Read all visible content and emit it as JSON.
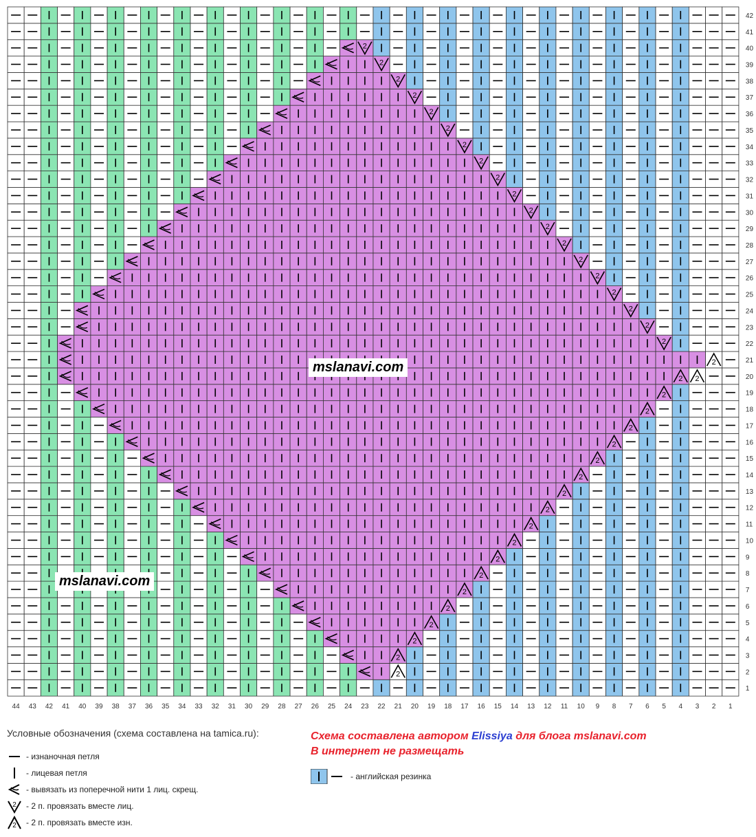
{
  "chart": {
    "cols": 44,
    "rows": 42,
    "colors": {
      "green": "#8be5b3",
      "blue": "#8fc5ec",
      "purple": "#d88fe3",
      "white": "#ffffff",
      "grid": "#333333"
    }
  },
  "watermark": "mslanavi.com",
  "legend": {
    "title": "Условные обозначения (схема составлена на tamica.ru):",
    "items": [
      {
        "icon": "purl-dash-icon",
        "text": "- изнаночная петля"
      },
      {
        "icon": "knit-bar-icon",
        "text": "- лицевая петля"
      },
      {
        "icon": "make-one-icon",
        "text": "- вывязать из поперечной нити 1 лиц. скрещ."
      },
      {
        "icon": "k2tog-icon",
        "text": "- 2 п. провязать вместе лиц."
      },
      {
        "icon": "p2tog-icon",
        "text": "- 2 п. провязать вместе изн."
      }
    ]
  },
  "credit": {
    "line1_prefix": "Схема составлена автором",
    "author": "Elissiya",
    "line1_middle": "для блога",
    "blog": "mslanavi.com",
    "line2": "В интернет не размещать"
  },
  "rib_legend": {
    "text": "- английская резинка"
  }
}
